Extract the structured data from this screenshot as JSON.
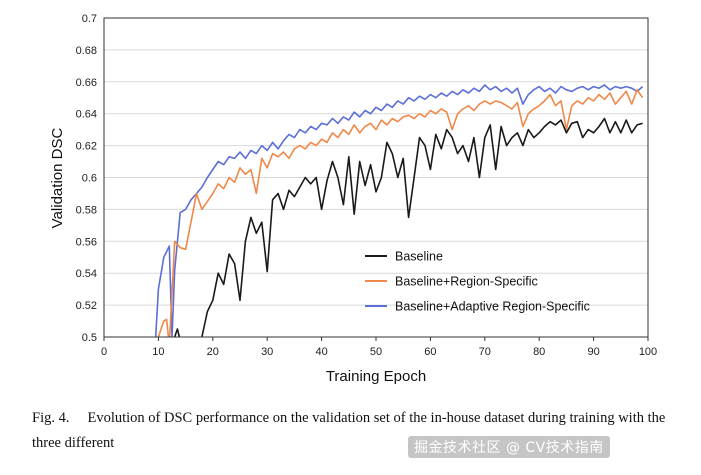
{
  "chart_data": {
    "type": "line",
    "title": "",
    "xlabel": "Training Epoch",
    "ylabel": "Validation DSC",
    "xlim": [
      0,
      100
    ],
    "ylim": [
      0.5,
      0.7
    ],
    "xticks": [
      "0",
      "10",
      "20",
      "30",
      "40",
      "50",
      "60",
      "70",
      "80",
      "90",
      "100"
    ],
    "yticks": [
      "0.5",
      "0.52",
      "0.54",
      "0.56",
      "0.58",
      "0.6",
      "0.62",
      "0.64",
      "0.66",
      "0.68",
      "0.7"
    ],
    "legend_position": "lower-right",
    "series": [
      {
        "name": "Baseline",
        "color": "#1a1a1a",
        "points": [
          [
            13,
            0.5
          ],
          [
            13.5,
            0.505
          ],
          [
            14,
            0.498
          ],
          [
            15,
            0.49
          ],
          [
            16,
            0.49
          ],
          [
            17,
            0.49
          ],
          [
            18,
            0.5
          ],
          [
            19,
            0.516
          ],
          [
            20,
            0.523
          ],
          [
            21,
            0.54
          ],
          [
            22,
            0.533
          ],
          [
            23,
            0.552
          ],
          [
            24,
            0.546
          ],
          [
            25,
            0.523
          ],
          [
            26,
            0.56
          ],
          [
            27,
            0.575
          ],
          [
            28,
            0.565
          ],
          [
            29,
            0.572
          ],
          [
            30,
            0.541
          ],
          [
            31,
            0.586
          ],
          [
            32,
            0.59
          ],
          [
            33,
            0.58
          ],
          [
            34,
            0.592
          ],
          [
            35,
            0.588
          ],
          [
            36,
            0.594
          ],
          [
            37,
            0.6
          ],
          [
            38,
            0.596
          ],
          [
            39,
            0.6
          ],
          [
            40,
            0.58
          ],
          [
            41,
            0.598
          ],
          [
            42,
            0.61
          ],
          [
            43,
            0.6
          ],
          [
            44,
            0.583
          ],
          [
            45,
            0.613
          ],
          [
            46,
            0.577
          ],
          [
            47,
            0.61
          ],
          [
            48,
            0.595
          ],
          [
            49,
            0.608
          ],
          [
            50,
            0.591
          ],
          [
            51,
            0.6
          ],
          [
            52,
            0.622
          ],
          [
            53,
            0.615
          ],
          [
            54,
            0.6
          ],
          [
            55,
            0.612
          ],
          [
            56,
            0.575
          ],
          [
            57,
            0.6
          ],
          [
            58,
            0.625
          ],
          [
            59,
            0.62
          ],
          [
            60,
            0.605
          ],
          [
            61,
            0.627
          ],
          [
            62,
            0.618
          ],
          [
            63,
            0.63
          ],
          [
            64,
            0.625
          ],
          [
            65,
            0.615
          ],
          [
            66,
            0.62
          ],
          [
            67,
            0.61
          ],
          [
            68,
            0.625
          ],
          [
            69,
            0.6
          ],
          [
            70,
            0.625
          ],
          [
            71,
            0.633
          ],
          [
            72,
            0.605
          ],
          [
            73,
            0.632
          ],
          [
            74,
            0.62
          ],
          [
            75,
            0.625
          ],
          [
            76,
            0.628
          ],
          [
            77,
            0.62
          ],
          [
            78,
            0.63
          ],
          [
            79,
            0.625
          ],
          [
            80,
            0.628
          ],
          [
            81,
            0.632
          ],
          [
            82,
            0.635
          ],
          [
            83,
            0.633
          ],
          [
            84,
            0.636
          ],
          [
            85,
            0.628
          ],
          [
            86,
            0.634
          ],
          [
            87,
            0.635
          ],
          [
            88,
            0.625
          ],
          [
            89,
            0.63
          ],
          [
            90,
            0.628
          ],
          [
            91,
            0.632
          ],
          [
            92,
            0.637
          ],
          [
            93,
            0.628
          ],
          [
            94,
            0.635
          ],
          [
            95,
            0.628
          ],
          [
            96,
            0.636
          ],
          [
            97,
            0.628
          ],
          [
            98,
            0.633
          ],
          [
            99,
            0.634
          ]
        ]
      },
      {
        "name": "Baseline+Region-Specific",
        "color": "#f0884a",
        "points": [
          [
            10,
            0.5
          ],
          [
            11,
            0.51
          ],
          [
            11.5,
            0.511
          ],
          [
            12,
            0.495
          ],
          [
            13,
            0.56
          ],
          [
            14,
            0.556
          ],
          [
            15,
            0.555
          ],
          [
            16,
            0.572
          ],
          [
            17,
            0.59
          ],
          [
            18,
            0.58
          ],
          [
            19,
            0.585
          ],
          [
            20,
            0.59
          ],
          [
            21,
            0.596
          ],
          [
            22,
            0.593
          ],
          [
            23,
            0.6
          ],
          [
            24,
            0.597
          ],
          [
            25,
            0.606
          ],
          [
            26,
            0.602
          ],
          [
            27,
            0.605
          ],
          [
            28,
            0.59
          ],
          [
            29,
            0.612
          ],
          [
            30,
            0.606
          ],
          [
            31,
            0.615
          ],
          [
            32,
            0.613
          ],
          [
            33,
            0.616
          ],
          [
            34,
            0.612
          ],
          [
            35,
            0.618
          ],
          [
            36,
            0.62
          ],
          [
            37,
            0.618
          ],
          [
            38,
            0.622
          ],
          [
            39,
            0.62
          ],
          [
            40,
            0.624
          ],
          [
            41,
            0.622
          ],
          [
            42,
            0.628
          ],
          [
            43,
            0.625
          ],
          [
            44,
            0.63
          ],
          [
            45,
            0.627
          ],
          [
            46,
            0.633
          ],
          [
            47,
            0.628
          ],
          [
            48,
            0.632
          ],
          [
            49,
            0.634
          ],
          [
            50,
            0.63
          ],
          [
            51,
            0.636
          ],
          [
            52,
            0.633
          ],
          [
            53,
            0.637
          ],
          [
            54,
            0.635
          ],
          [
            55,
            0.638
          ],
          [
            56,
            0.639
          ],
          [
            57,
            0.637
          ],
          [
            58,
            0.64
          ],
          [
            59,
            0.638
          ],
          [
            60,
            0.642
          ],
          [
            61,
            0.64
          ],
          [
            62,
            0.643
          ],
          [
            63,
            0.641
          ],
          [
            64,
            0.63
          ],
          [
            65,
            0.64
          ],
          [
            66,
            0.643
          ],
          [
            67,
            0.645
          ],
          [
            68,
            0.642
          ],
          [
            69,
            0.646
          ],
          [
            70,
            0.648
          ],
          [
            71,
            0.646
          ],
          [
            72,
            0.648
          ],
          [
            73,
            0.647
          ],
          [
            74,
            0.645
          ],
          [
            75,
            0.643
          ],
          [
            76,
            0.647
          ],
          [
            77,
            0.632
          ],
          [
            78,
            0.64
          ],
          [
            79,
            0.643
          ],
          [
            80,
            0.645
          ],
          [
            81,
            0.648
          ],
          [
            82,
            0.652
          ],
          [
            83,
            0.645
          ],
          [
            84,
            0.648
          ],
          [
            85,
            0.63
          ],
          [
            86,
            0.645
          ],
          [
            87,
            0.648
          ],
          [
            88,
            0.646
          ],
          [
            89,
            0.65
          ],
          [
            90,
            0.648
          ],
          [
            91,
            0.652
          ],
          [
            92,
            0.649
          ],
          [
            93,
            0.653
          ],
          [
            94,
            0.646
          ],
          [
            95,
            0.65
          ],
          [
            96,
            0.654
          ],
          [
            97,
            0.646
          ],
          [
            98,
            0.655
          ],
          [
            99,
            0.65
          ]
        ]
      },
      {
        "name": "Baseline+Adaptive Region-Specific",
        "color": "#5b6fd6",
        "points": [
          [
            9.5,
            0.5
          ],
          [
            10,
            0.53
          ],
          [
            11,
            0.55
          ],
          [
            12,
            0.557
          ],
          [
            12.5,
            0.5
          ],
          [
            13,
            0.542
          ],
          [
            14,
            0.578
          ],
          [
            15,
            0.58
          ],
          [
            16,
            0.586
          ],
          [
            17,
            0.59
          ],
          [
            18,
            0.594
          ],
          [
            19,
            0.6
          ],
          [
            20,
            0.605
          ],
          [
            21,
            0.61
          ],
          [
            22,
            0.608
          ],
          [
            23,
            0.613
          ],
          [
            24,
            0.612
          ],
          [
            25,
            0.616
          ],
          [
            26,
            0.612
          ],
          [
            27,
            0.617
          ],
          [
            28,
            0.615
          ],
          [
            29,
            0.62
          ],
          [
            30,
            0.617
          ],
          [
            31,
            0.622
          ],
          [
            32,
            0.618
          ],
          [
            33,
            0.623
          ],
          [
            34,
            0.627
          ],
          [
            35,
            0.625
          ],
          [
            36,
            0.63
          ],
          [
            37,
            0.628
          ],
          [
            38,
            0.632
          ],
          [
            39,
            0.63
          ],
          [
            40,
            0.634
          ],
          [
            41,
            0.633
          ],
          [
            42,
            0.637
          ],
          [
            43,
            0.634
          ],
          [
            44,
            0.638
          ],
          [
            45,
            0.636
          ],
          [
            46,
            0.641
          ],
          [
            47,
            0.638
          ],
          [
            48,
            0.642
          ],
          [
            49,
            0.64
          ],
          [
            50,
            0.644
          ],
          [
            51,
            0.642
          ],
          [
            52,
            0.646
          ],
          [
            53,
            0.644
          ],
          [
            54,
            0.648
          ],
          [
            55,
            0.646
          ],
          [
            56,
            0.65
          ],
          [
            57,
            0.648
          ],
          [
            58,
            0.651
          ],
          [
            59,
            0.649
          ],
          [
            60,
            0.652
          ],
          [
            61,
            0.65
          ],
          [
            62,
            0.653
          ],
          [
            63,
            0.651
          ],
          [
            64,
            0.654
          ],
          [
            65,
            0.652
          ],
          [
            66,
            0.655
          ],
          [
            67,
            0.653
          ],
          [
            68,
            0.656
          ],
          [
            69,
            0.654
          ],
          [
            70,
            0.658
          ],
          [
            71,
            0.655
          ],
          [
            72,
            0.657
          ],
          [
            73,
            0.654
          ],
          [
            74,
            0.656
          ],
          [
            75,
            0.653
          ],
          [
            76,
            0.656
          ],
          [
            77,
            0.646
          ],
          [
            78,
            0.652
          ],
          [
            79,
            0.655
          ],
          [
            80,
            0.657
          ],
          [
            81,
            0.654
          ],
          [
            82,
            0.656
          ],
          [
            83,
            0.653
          ],
          [
            84,
            0.657
          ],
          [
            85,
            0.655
          ],
          [
            86,
            0.654
          ],
          [
            87,
            0.656
          ],
          [
            88,
            0.657
          ],
          [
            89,
            0.655
          ],
          [
            90,
            0.657
          ],
          [
            91,
            0.656
          ],
          [
            92,
            0.658
          ],
          [
            93,
            0.655
          ],
          [
            94,
            0.657
          ],
          [
            95,
            0.656
          ],
          [
            96,
            0.657
          ],
          [
            97,
            0.656
          ],
          [
            98,
            0.654
          ],
          [
            99,
            0.657
          ]
        ]
      }
    ]
  },
  "caption": {
    "label": "Fig. 4.",
    "text": "Evolution of DSC performance on the validation set of the in-house dataset during training with the three different"
  },
  "watermark": "掘金技术社区 @ CV技术指南"
}
